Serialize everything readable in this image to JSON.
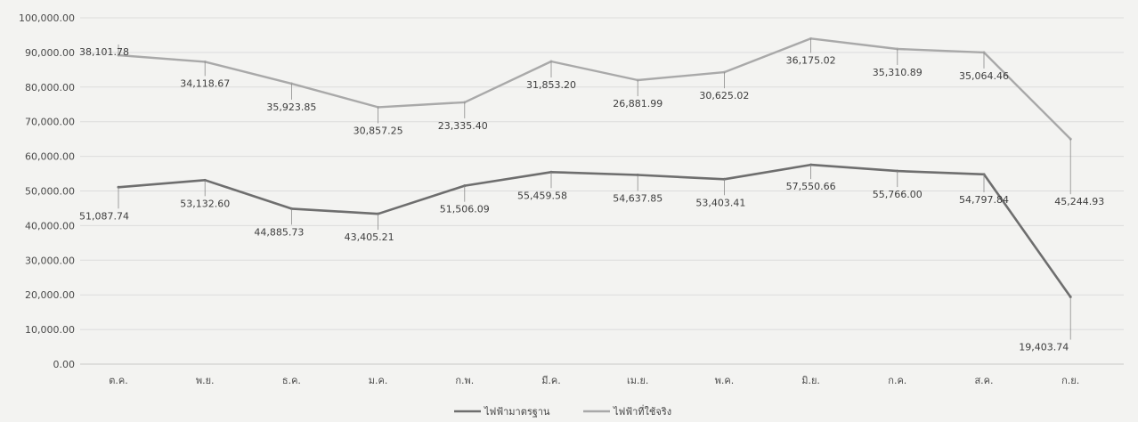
{
  "chart_data": {
    "type": "line",
    "title": "",
    "xlabel": "",
    "ylabel": "",
    "categories": [
      "ต.ค.",
      "พ.ย.",
      "ธ.ค.",
      "ม.ค.",
      "ก.พ.",
      "มี.ค.",
      "เม.ย.",
      "พ.ค.",
      "มิ.ย.",
      "ก.ค.",
      "ส.ค.",
      "ก.ย."
    ],
    "ylim": [
      0,
      100000
    ],
    "yticks": [
      "0.00",
      "10,000.00",
      "20,000.00",
      "30,000.00",
      "40,000.00",
      "50,000.00",
      "60,000.00",
      "70,000.00",
      "80,000.00",
      "90,000.00",
      "100,000.00"
    ],
    "grid": true,
    "legend_position": "bottom",
    "series": [
      {
        "name": "ไฟฟ้ามาตรฐาน",
        "color": "#6e6e6e",
        "values": [
          51087.74,
          53132.6,
          44885.73,
          43405.21,
          51506.09,
          55459.58,
          54637.85,
          53403.41,
          57550.66,
          55766.0,
          54797.84,
          19403.74
        ],
        "labels": [
          "51,087.74",
          "53,132.60",
          "44,885.73",
          "43,405.21",
          "51,506.09",
          "55,459.58",
          "54,637.85",
          "53,403.41",
          "57,550.66",
          "55,766.00",
          "54,797.84",
          "19,403.74"
        ]
      },
      {
        "name": "ไฟฟ้าที่ใช้จริง",
        "color": "#a9a9a9",
        "values": [
          89200,
          87300,
          81000,
          74200,
          75600,
          87400,
          82000,
          84300,
          94000,
          91000,
          90000,
          65000
        ],
        "labels": [
          "38,101.78",
          "34,118.67",
          "35,923.85",
          "30,857.25",
          "23,335.40",
          "31,853.20",
          "26,881.99",
          "30,625.02",
          "36,175.02",
          "35,310.89",
          "35,064.46",
          "45,244.93"
        ]
      }
    ]
  }
}
